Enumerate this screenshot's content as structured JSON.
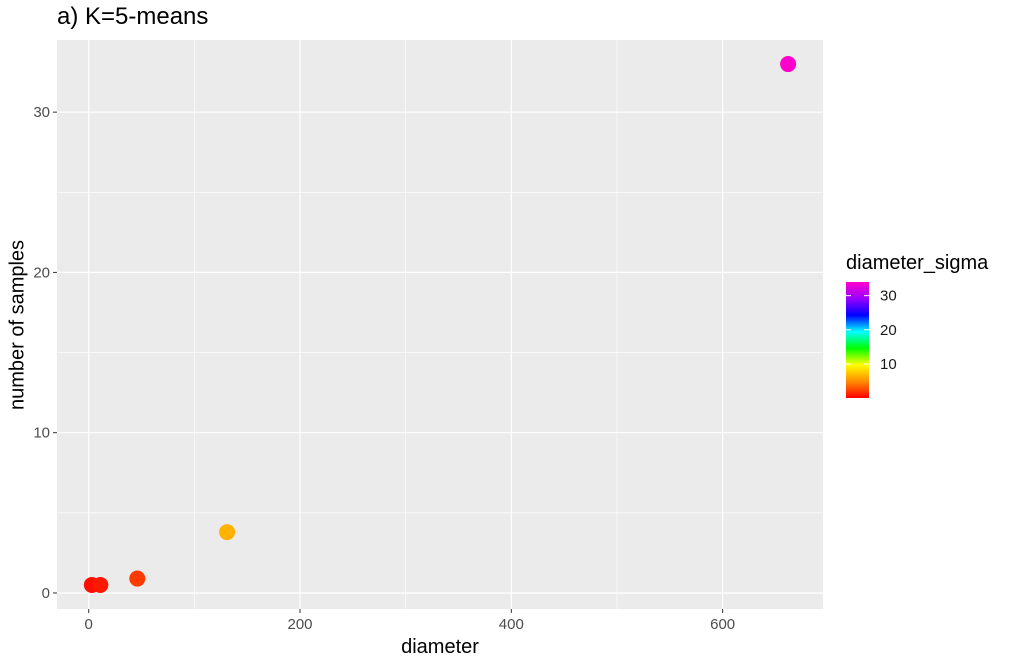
{
  "chart_data": {
    "type": "scatter",
    "title": "a) K=5-means",
    "xlabel": "diameter",
    "ylabel": "number of samples",
    "xlim": [
      -30,
      695
    ],
    "ylim": [
      -1,
      34.5
    ],
    "xticks": [
      0,
      200,
      400,
      600
    ],
    "yticks": [
      0,
      10,
      20,
      30
    ],
    "grid": true,
    "points": [
      {
        "x": 3,
        "y": 0.5,
        "diameter_sigma": 0.5
      },
      {
        "x": 11,
        "y": 0.5,
        "diameter_sigma": 0.8
      },
      {
        "x": 46,
        "y": 0.9,
        "diameter_sigma": 2.0
      },
      {
        "x": 131,
        "y": 3.8,
        "diameter_sigma": 6.5
      },
      {
        "x": 662,
        "y": 33,
        "diameter_sigma": 34
      }
    ],
    "legend": {
      "title": "diameter_sigma",
      "type": "colorbar",
      "placement": "right",
      "range": [
        0,
        34
      ],
      "ticks": [
        10,
        20,
        30
      ],
      "colors": [
        "#ff0000",
        "#ff8c00",
        "#ffff00",
        "#00ff00",
        "#00ffff",
        "#0000ff",
        "#9900ff",
        "#ff00cc"
      ]
    },
    "colors": {
      "panel": "#ebebeb",
      "grid_major": "#ffffff",
      "tick": "#333333"
    }
  }
}
